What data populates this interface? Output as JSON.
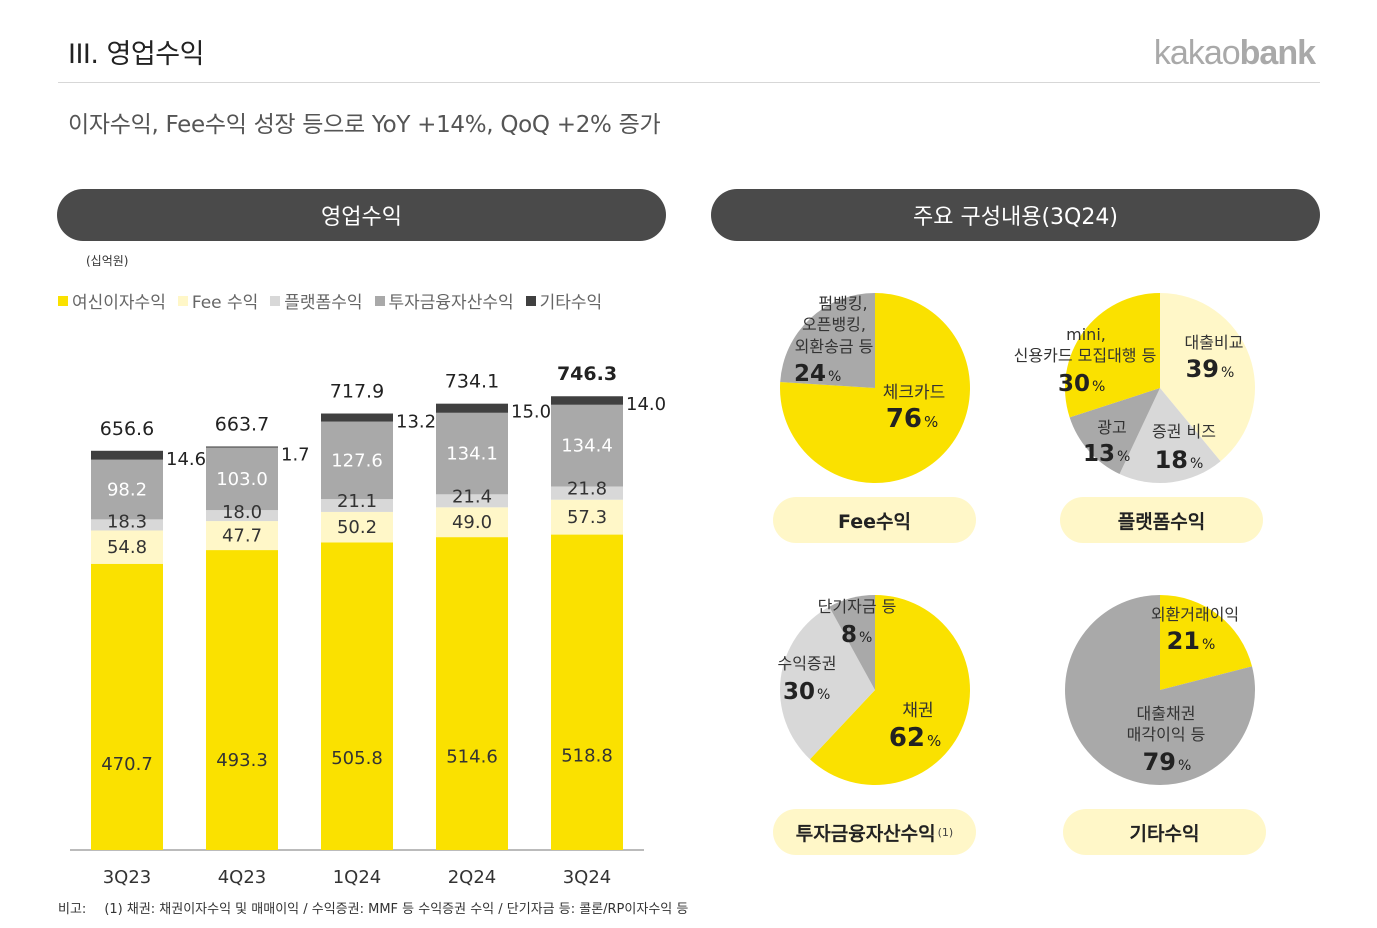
{
  "header": {
    "section_title": "III. 영업수익",
    "logo_light": "kakao",
    "logo_bold": "bank",
    "headline": "이자수익, Fee수익 성장 등으로 YoY +14%, QoQ +2% 증가"
  },
  "left_panel": {
    "title": "영업수익",
    "unit": "(십억원)"
  },
  "right_panel": {
    "title": "주요 구성내용(3Q24)"
  },
  "colors": {
    "yellow": "#fae100",
    "light_yellow": "#fff7c8",
    "light_gray": "#d8d8d8",
    "gray": "#a9a9a9",
    "dark": "#404040",
    "pill_dark": "#4a4a4a"
  },
  "chart_data": [
    {
      "type": "bar",
      "stacked": true,
      "title": "영업수익",
      "ylabel": "(십억원)",
      "categories": [
        "3Q23",
        "4Q23",
        "1Q24",
        "2Q24",
        "3Q24"
      ],
      "series": [
        {
          "name": "여신이자수익",
          "color": "#fae100",
          "values": [
            470.7,
            493.3,
            505.8,
            514.6,
            518.8
          ]
        },
        {
          "name": "Fee 수익",
          "color": "#fff7c8",
          "values": [
            54.8,
            47.7,
            50.2,
            49.0,
            57.3
          ]
        },
        {
          "name": "플랫폼수익",
          "color": "#d8d8d8",
          "values": [
            18.3,
            18.0,
            21.1,
            21.4,
            21.8
          ]
        },
        {
          "name": "투자금융자산수익",
          "color": "#a9a9a9",
          "values": [
            98.2,
            103.0,
            127.6,
            134.1,
            134.4
          ]
        },
        {
          "name": "기타수익",
          "color": "#404040",
          "values": [
            14.6,
            1.7,
            13.2,
            15.0,
            14.0
          ]
        }
      ],
      "totals": [
        656.6,
        663.7,
        717.9,
        734.1,
        746.3
      ],
      "ylim": [
        0,
        800
      ],
      "legend": "top"
    },
    {
      "type": "pie",
      "title": "Fee수익",
      "slices": [
        {
          "label": "체크카드",
          "value": 76,
          "color": "#fae100"
        },
        {
          "label": "펌뱅킹, 오픈뱅킹, 외환송금 등",
          "value": 24,
          "color": "#a9a9a9"
        }
      ]
    },
    {
      "type": "pie",
      "title": "플랫폼수익",
      "slices": [
        {
          "label": "대출비교",
          "value": 39,
          "color": "#fff7c8"
        },
        {
          "label": "증권 비즈",
          "value": 18,
          "color": "#d8d8d8"
        },
        {
          "label": "광고",
          "value": 13,
          "color": "#a9a9a9"
        },
        {
          "label": "mini, 신용카드 모집대행 등",
          "value": 30,
          "color": "#fae100"
        }
      ]
    },
    {
      "type": "pie",
      "title": "투자금융자산수익",
      "footnote_marker": "(1)",
      "slices": [
        {
          "label": "채권",
          "value": 62,
          "color": "#fae100"
        },
        {
          "label": "수익증권",
          "value": 30,
          "color": "#d8d8d8"
        },
        {
          "label": "단기자금 등",
          "value": 8,
          "color": "#a9a9a9"
        }
      ]
    },
    {
      "type": "pie",
      "title": "기타수익",
      "slices": [
        {
          "label": "외환거래이익",
          "value": 21,
          "color": "#fae100"
        },
        {
          "label": "대출채권 매각이익 등",
          "value": 79,
          "color": "#a9a9a9"
        }
      ]
    }
  ],
  "pie_text": {
    "fee": {
      "a_name": "체크카드",
      "a_pct": "76",
      "b_line1": "펌뱅킹,",
      "b_line2": "오픈뱅킹,",
      "b_line3": "외환송금 등",
      "b_pct": "24"
    },
    "platform": {
      "a_name": "대출비교",
      "a_pct": "39",
      "b_name": "증권 비즈",
      "b_pct": "18",
      "c_name": "광고",
      "c_pct": "13",
      "d_line1": "mini,",
      "d_line2": "신용카드 모집대행 등",
      "d_pct": "30"
    },
    "invest": {
      "a_name": "채권",
      "a_pct": "62",
      "b_name": "수익증권",
      "b_pct": "30",
      "c_name": "단기자금 등",
      "c_pct": "8"
    },
    "other": {
      "a_name": "외환거래이익",
      "a_pct": "21",
      "b_line1": "대출채권",
      "b_line2": "매각이익 등",
      "b_pct": "79"
    },
    "pct_sign": "%"
  },
  "footnote": {
    "label": "비고:",
    "text": "(1) 채권: 채권이자수익 및 매매이익 / 수익증권: MMF 등 수익증권 수익 / 단기자금 등: 콜론/RP이자수익 등"
  }
}
